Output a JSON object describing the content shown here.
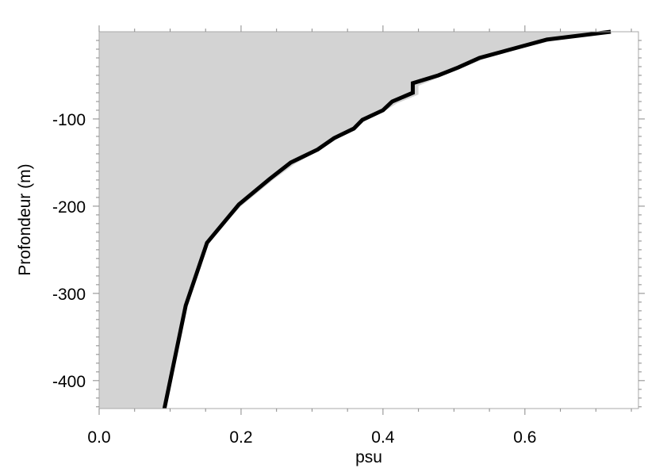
{
  "chart_data": {
    "type": "profile",
    "xlabel": "psu",
    "ylabel": "Profondeur (m)",
    "xlim": [
      0,
      0.76
    ],
    "ylim": [
      -432,
      0
    ],
    "xticks": [
      {
        "value": 0,
        "label": "0.0"
      },
      0.2,
      0.4,
      0.6
    ],
    "yticks": [
      -100,
      -200,
      -300,
      -400
    ],
    "xminorticks": [
      0.05,
      0.1,
      0.15,
      0.25,
      0.3,
      0.35,
      0.45,
      0.5,
      0.55,
      0.65,
      0.7,
      0.75
    ],
    "yminorticks": [
      -10,
      -20,
      -30,
      -40,
      -50,
      -60,
      -70,
      -80,
      -90,
      -110,
      -120,
      -130,
      -140,
      -150,
      -160,
      -170,
      -180,
      -190,
      -210,
      -220,
      -230,
      -240,
      -250,
      -260,
      -270,
      -280,
      -290,
      -310,
      -320,
      -330,
      -340,
      -350,
      -360,
      -370,
      -380,
      -390,
      -410,
      -420,
      -430
    ],
    "series": [
      {
        "kind": "area",
        "color": "#d3d3d3",
        "x": [
          0.72,
          0.64,
          0.59,
          0.54,
          0.51,
          0.48,
          0.45,
          0.45,
          0.42,
          0.4,
          0.375,
          0.36,
          0.335,
          0.31,
          0.275,
          0.245,
          0.2,
          0.152,
          0.122,
          0.092
        ],
        "values": [
          0,
          -10,
          -20,
          -32,
          -42,
          -52,
          -62,
          -72,
          -82,
          -92,
          -102,
          -112,
          -123,
          -136,
          -152,
          -170,
          -200,
          -242,
          -314,
          -432
        ]
      },
      {
        "kind": "line",
        "color": "#000000",
        "x": [
          0.721,
          0.631,
          0.581,
          0.536,
          0.506,
          0.478,
          0.442,
          0.442,
          0.413,
          0.4,
          0.371,
          0.359,
          0.331,
          0.308,
          0.27,
          0.24,
          0.197,
          0.152,
          0.122,
          0.092
        ],
        "values": [
          0,
          -9,
          -20,
          -30,
          -41,
          -50,
          -59,
          -70,
          -80,
          -90,
          -101,
          -111,
          -122,
          -135,
          -150,
          -169,
          -198,
          -242,
          -314,
          -432
        ]
      }
    ]
  }
}
